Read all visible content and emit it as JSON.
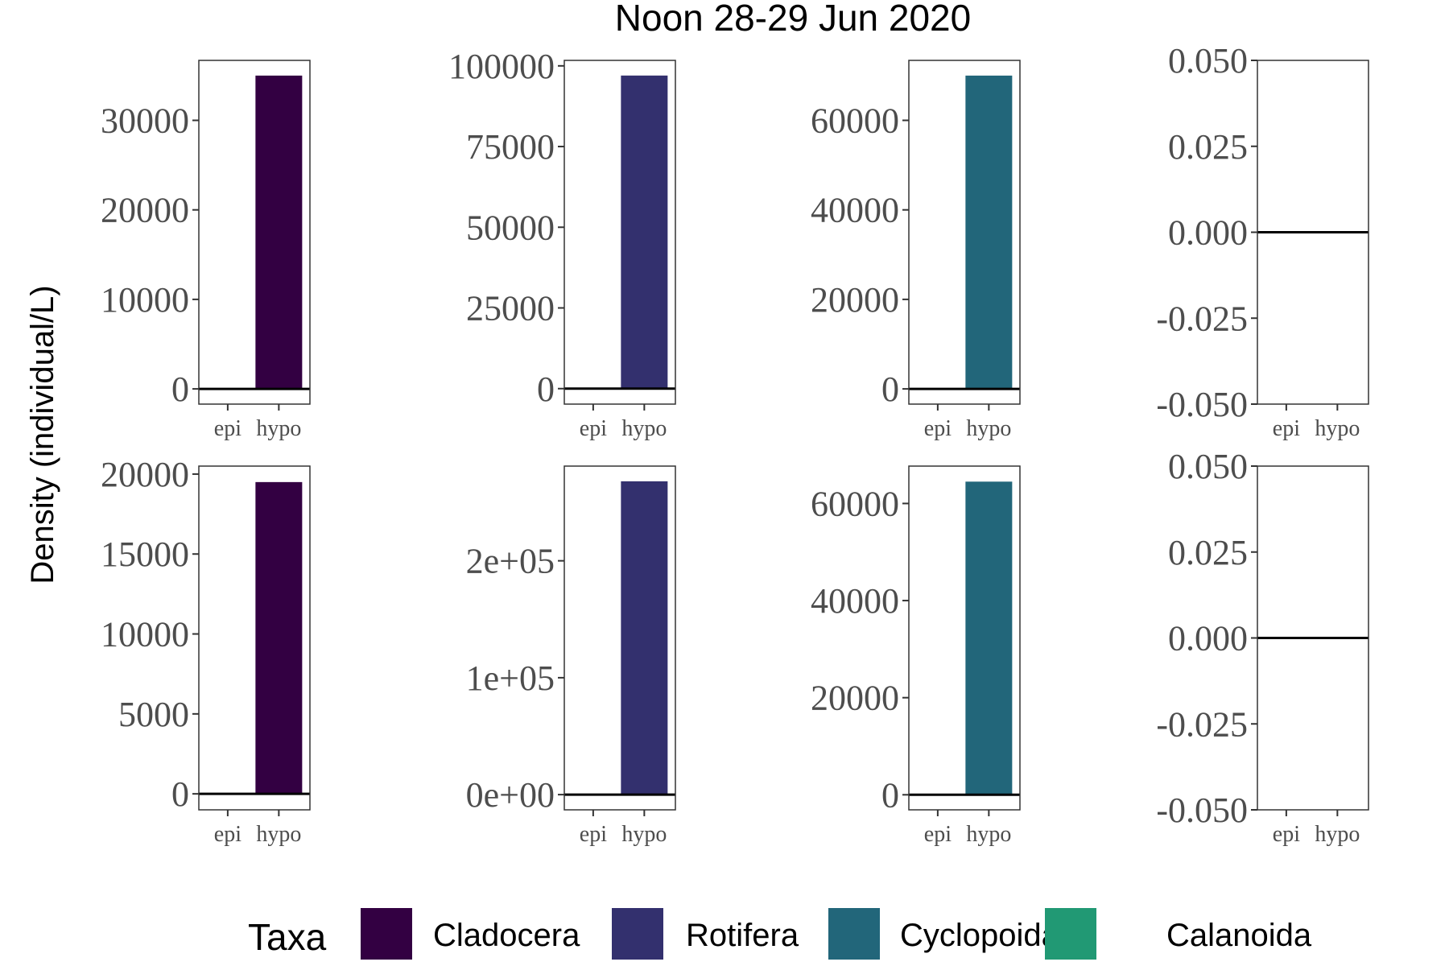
{
  "chart_data": {
    "type": "bar",
    "title": "Noon 28-29 Jun 2020",
    "ylabel": "Density (individual/L)",
    "xlabel": "",
    "categories": [
      "epi",
      "hypo"
    ],
    "legend": {
      "title": "Taxa",
      "position": "bottom",
      "entries": [
        {
          "name": "Cladocera",
          "color": "#330042"
        },
        {
          "name": "Rotifera",
          "color": "#33306e"
        },
        {
          "name": "Cyclopoida",
          "color": "#22667a"
        },
        {
          "name": "Calanoida",
          "color": "#219974"
        }
      ]
    },
    "grid": false,
    "panels": [
      {
        "row": 1,
        "taxon": "Cladocera",
        "values": [
          0,
          35000
        ],
        "ylim": [
          -1700,
          36700
        ],
        "yticks": [
          0,
          10000,
          20000,
          30000
        ],
        "ytick_labels": [
          "0",
          "10000",
          "20000",
          "30000"
        ]
      },
      {
        "row": 1,
        "taxon": "Rotifera",
        "values": [
          0,
          97000
        ],
        "ylim": [
          -4800,
          101700
        ],
        "yticks": [
          0,
          25000,
          50000,
          75000,
          100000
        ],
        "ytick_labels": [
          "0",
          "25000",
          "50000",
          "75000",
          "100000"
        ]
      },
      {
        "row": 1,
        "taxon": "Cyclopoida",
        "values": [
          0,
          70000
        ],
        "ylim": [
          -3400,
          73400
        ],
        "yticks": [
          0,
          20000,
          40000,
          60000
        ],
        "ytick_labels": [
          "0",
          "20000",
          "40000",
          "60000"
        ]
      },
      {
        "row": 1,
        "taxon": "Calanoida",
        "values": [
          0,
          0
        ],
        "ylim": [
          -0.05,
          0.05
        ],
        "yticks": [
          -0.05,
          -0.025,
          0,
          0.025,
          0.05
        ],
        "ytick_labels": [
          "-0.050",
          "-0.025",
          "0.000",
          "0.025",
          "0.050"
        ]
      },
      {
        "row": 2,
        "taxon": "Cladocera",
        "values": [
          0,
          19500
        ],
        "ylim": [
          -1000,
          20500
        ],
        "yticks": [
          0,
          5000,
          10000,
          15000,
          20000
        ],
        "ytick_labels": [
          "0",
          "5000",
          "10000",
          "15000",
          "20000"
        ]
      },
      {
        "row": 2,
        "taxon": "Rotifera",
        "values": [
          0,
          268000
        ],
        "ylim": [
          -13000,
          281000
        ],
        "yticks": [
          0,
          100000,
          200000
        ],
        "ytick_labels": [
          "0e+00",
          "1e+05",
          "2e+05"
        ]
      },
      {
        "row": 2,
        "taxon": "Cyclopoida",
        "values": [
          0,
          64500
        ],
        "ylim": [
          -3100,
          67700
        ],
        "yticks": [
          0,
          20000,
          40000,
          60000
        ],
        "ytick_labels": [
          "0",
          "20000",
          "40000",
          "60000"
        ]
      },
      {
        "row": 2,
        "taxon": "Calanoida",
        "values": [
          0,
          0
        ],
        "ylim": [
          -0.05,
          0.05
        ],
        "yticks": [
          -0.05,
          -0.025,
          0,
          0.025,
          0.05
        ],
        "ytick_labels": [
          "-0.050",
          "-0.025",
          "0.000",
          "0.025",
          "0.050"
        ]
      }
    ]
  }
}
